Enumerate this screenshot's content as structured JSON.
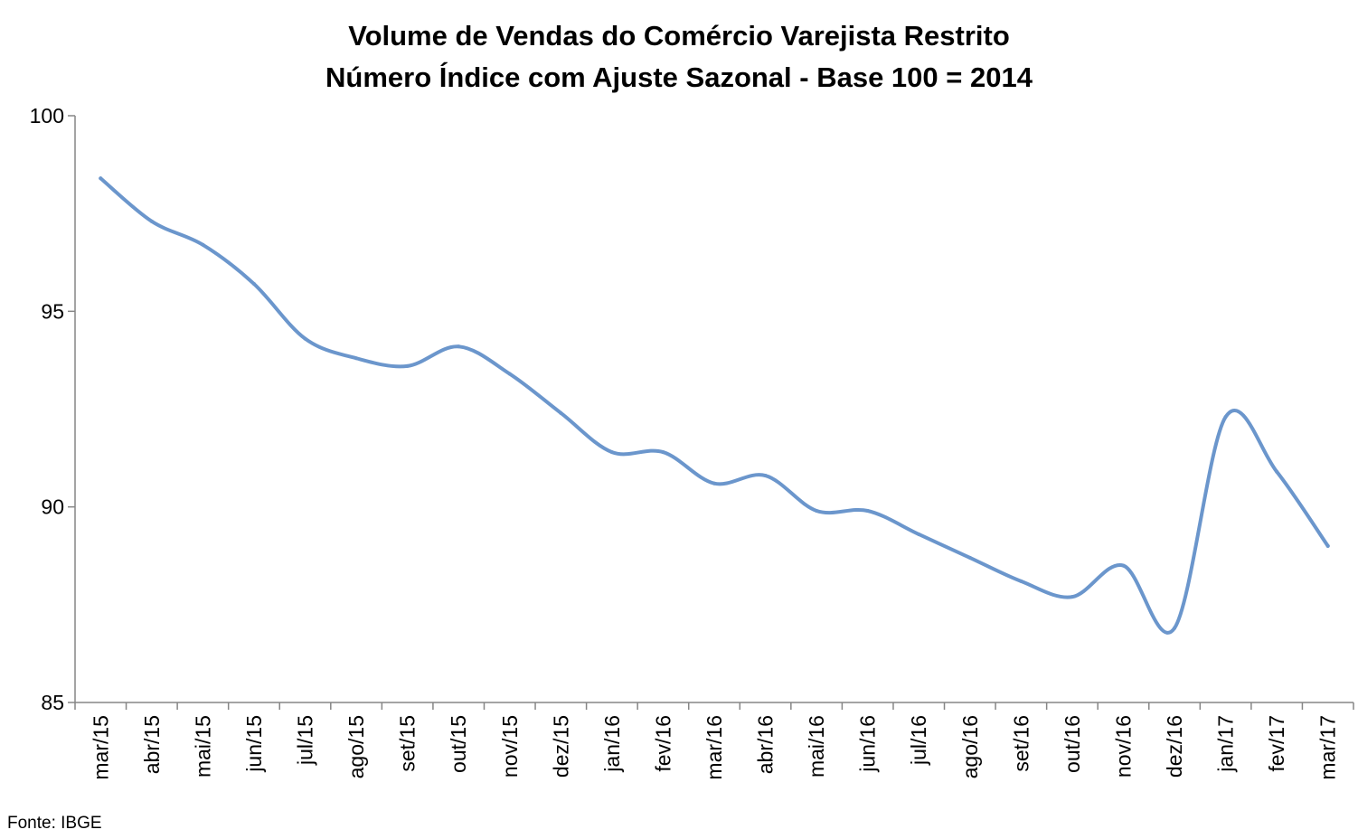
{
  "chart_data": {
    "type": "line",
    "title": "Volume de Vendas do Comércio Varejista Restrito",
    "subtitle": "Número Índice com Ajuste Sazonal - Base 100 = 2014",
    "xlabel": "",
    "ylabel": "",
    "ylim": [
      85,
      100
    ],
    "yticks": [
      "85",
      "90",
      "95",
      "100"
    ],
    "grid": false,
    "categories": [
      "mar/15",
      "abr/15",
      "mai/15",
      "jun/15",
      "jul/15",
      "ago/15",
      "set/15",
      "out/15",
      "nov/15",
      "dez/15",
      "jan/16",
      "fev/16",
      "mar/16",
      "abr/16",
      "mai/16",
      "jun/16",
      "jul/16",
      "ago/16",
      "set/16",
      "out/16",
      "nov/16",
      "dez/16",
      "jan/17",
      "fev/17",
      "mar/17"
    ],
    "series": [
      {
        "values": [
          98.4,
          97.3,
          96.7,
          95.7,
          94.3,
          93.8,
          93.6,
          94.1,
          93.4,
          92.4,
          91.4,
          91.4,
          90.6,
          90.8,
          89.9,
          89.9,
          89.3,
          88.7,
          88.1,
          87.7,
          88.5,
          86.9,
          92.3,
          90.9,
          89.0
        ],
        "color": "#6b96cc"
      }
    ]
  },
  "source": "Fonte: IBGE"
}
